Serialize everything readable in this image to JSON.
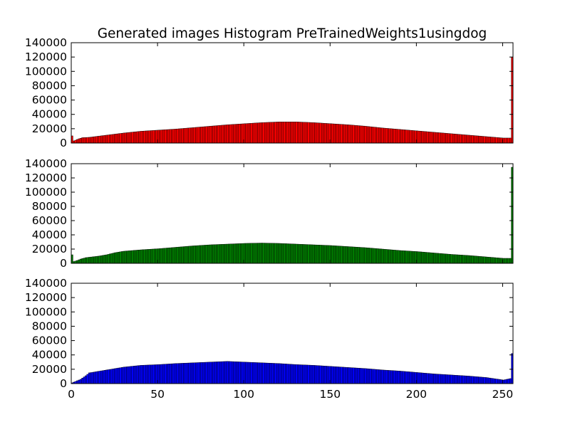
{
  "chart_data": {
    "type": "bar",
    "title": "Generated images Histogram PreTrainedWeights1usingdog",
    "xlabel": "",
    "ylabel": "",
    "xlim": [
      0,
      256
    ],
    "ylim": [
      0,
      140000
    ],
    "x_ticks": [
      "0",
      "50",
      "100",
      "150",
      "200",
      "250"
    ],
    "y_ticks": [
      "0",
      "20000",
      "40000",
      "60000",
      "80000",
      "100000",
      "120000",
      "140000"
    ],
    "grid": false,
    "legend": "none",
    "bins": "0-255, width 1",
    "panels": [
      {
        "name": "red",
        "color": "#ff0000",
        "anchors": [
          [
            0,
            10000
          ],
          [
            1,
            3000
          ],
          [
            2,
            4000
          ],
          [
            4,
            6000
          ],
          [
            6,
            7500
          ],
          [
            10,
            8000
          ],
          [
            20,
            11000
          ],
          [
            30,
            14000
          ],
          [
            40,
            16500
          ],
          [
            50,
            18000
          ],
          [
            60,
            19500
          ],
          [
            70,
            21500
          ],
          [
            80,
            23500
          ],
          [
            90,
            25500
          ],
          [
            100,
            27000
          ],
          [
            110,
            28500
          ],
          [
            120,
            29500
          ],
          [
            130,
            29500
          ],
          [
            140,
            28500
          ],
          [
            150,
            27000
          ],
          [
            160,
            25500
          ],
          [
            170,
            23500
          ],
          [
            180,
            21000
          ],
          [
            190,
            19000
          ],
          [
            200,
            17000
          ],
          [
            210,
            15000
          ],
          [
            220,
            13000
          ],
          [
            230,
            11000
          ],
          [
            240,
            9000
          ],
          [
            250,
            7000
          ],
          [
            254,
            7000
          ],
          [
            255,
            120000
          ]
        ]
      },
      {
        "name": "green",
        "color": "#008000",
        "anchors": [
          [
            0,
            12000
          ],
          [
            1,
            2500
          ],
          [
            3,
            4000
          ],
          [
            5,
            6000
          ],
          [
            8,
            8000
          ],
          [
            15,
            10000
          ],
          [
            20,
            12000
          ],
          [
            25,
            15000
          ],
          [
            30,
            17000
          ],
          [
            40,
            19000
          ],
          [
            50,
            20500
          ],
          [
            60,
            22500
          ],
          [
            70,
            24500
          ],
          [
            80,
            26000
          ],
          [
            90,
            27000
          ],
          [
            100,
            28000
          ],
          [
            110,
            28500
          ],
          [
            120,
            28000
          ],
          [
            130,
            27000
          ],
          [
            140,
            26000
          ],
          [
            150,
            25000
          ],
          [
            160,
            23500
          ],
          [
            170,
            22000
          ],
          [
            180,
            20000
          ],
          [
            190,
            18000
          ],
          [
            200,
            16500
          ],
          [
            210,
            14500
          ],
          [
            220,
            12500
          ],
          [
            230,
            11000
          ],
          [
            240,
            9000
          ],
          [
            250,
            7000
          ],
          [
            254,
            7000
          ],
          [
            255,
            135000
          ]
        ]
      },
      {
        "name": "blue",
        "color": "#0000ff",
        "anchors": [
          [
            0,
            1000
          ],
          [
            2,
            3000
          ],
          [
            5,
            6000
          ],
          [
            8,
            11000
          ],
          [
            10,
            15000
          ],
          [
            15,
            17000
          ],
          [
            20,
            19000
          ],
          [
            30,
            23000
          ],
          [
            40,
            25500
          ],
          [
            50,
            26500
          ],
          [
            60,
            28000
          ],
          [
            70,
            29000
          ],
          [
            80,
            30000
          ],
          [
            90,
            31000
          ],
          [
            100,
            30000
          ],
          [
            110,
            29000
          ],
          [
            120,
            28000
          ],
          [
            130,
            26500
          ],
          [
            140,
            25500
          ],
          [
            150,
            24000
          ],
          [
            160,
            22500
          ],
          [
            170,
            21000
          ],
          [
            180,
            19000
          ],
          [
            190,
            17500
          ],
          [
            200,
            15500
          ],
          [
            210,
            13500
          ],
          [
            220,
            12000
          ],
          [
            230,
            10500
          ],
          [
            240,
            8500
          ],
          [
            250,
            5000
          ],
          [
            254,
            7000
          ],
          [
            255,
            42000
          ]
        ]
      }
    ]
  }
}
